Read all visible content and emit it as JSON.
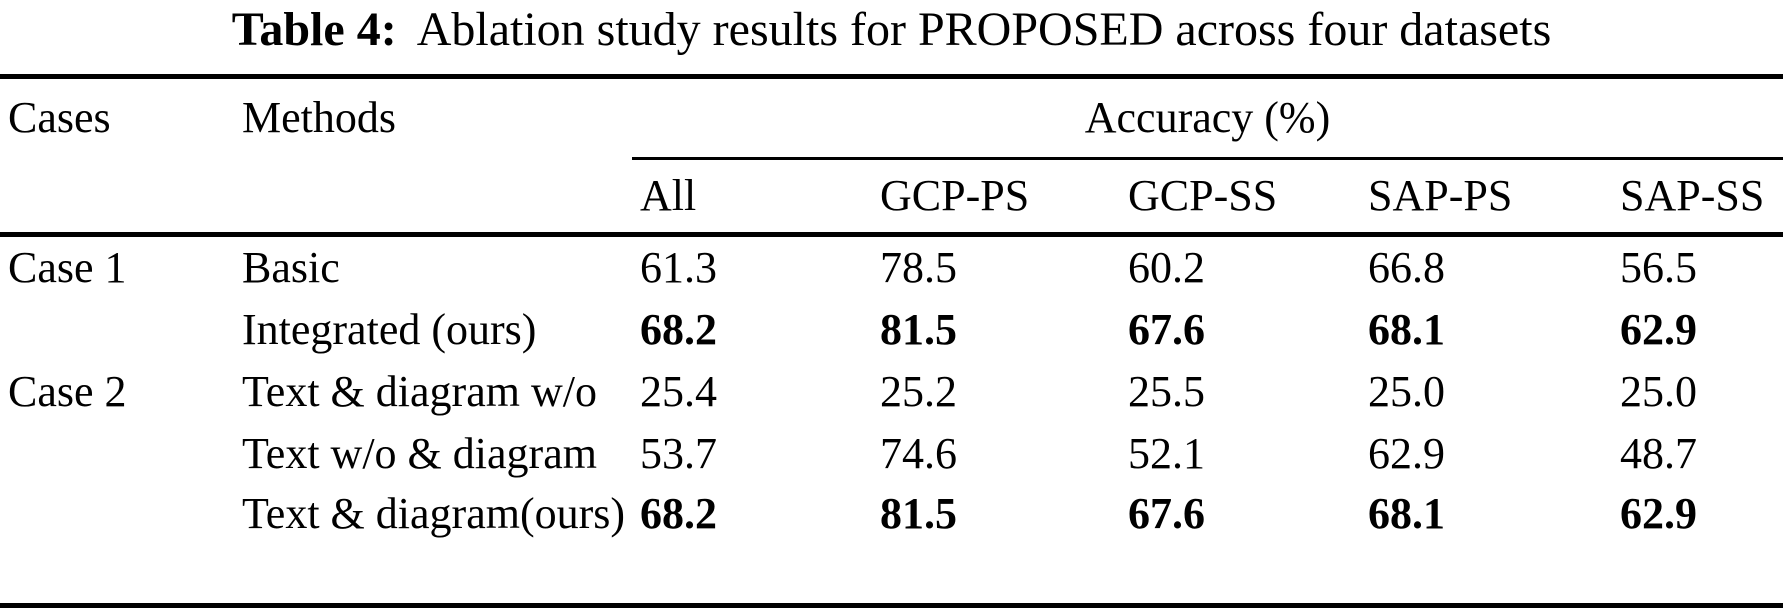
{
  "title": {
    "label": "Table 4:",
    "text": "Ablation study results for PROPOSED across four datasets"
  },
  "table": {
    "col_headers": {
      "cases": "Cases",
      "methods": "Methods",
      "accuracy_group": "Accuracy (%)"
    },
    "sub_headers": [
      "All",
      "GCP-PS",
      "GCP-SS",
      "SAP-PS",
      "SAP-SS"
    ],
    "rows": [
      {
        "cases": "Case 1",
        "method_lines": [
          "Basic"
        ],
        "values": [
          "61.3",
          "78.5",
          "60.2",
          "66.8",
          "56.5"
        ],
        "bold": false
      },
      {
        "cases": "",
        "method_lines": [
          "Integrated (ours)"
        ],
        "values": [
          "68.2",
          "81.5",
          "67.6",
          "68.1",
          "62.9"
        ],
        "bold": true
      },
      {
        "cases": "Case 2",
        "method_lines": [
          "Text & diagram w/o"
        ],
        "values": [
          "25.4",
          "25.2",
          "25.5",
          "25.0",
          "25.0"
        ],
        "bold": false
      },
      {
        "cases": "",
        "method_lines": [
          "Text w/o & diagram"
        ],
        "values": [
          "53.7",
          "74.6",
          "52.1",
          "62.9",
          "48.7"
        ],
        "bold": false
      },
      {
        "cases": "",
        "method_lines": [
          "Text & diagram",
          "(ours)"
        ],
        "values": [
          "68.2",
          "81.5",
          "67.6",
          "68.1",
          "62.9"
        ],
        "bold": true
      }
    ]
  },
  "colors": {
    "background": "#ffffff",
    "text": "#000000",
    "rule": "#000000"
  }
}
